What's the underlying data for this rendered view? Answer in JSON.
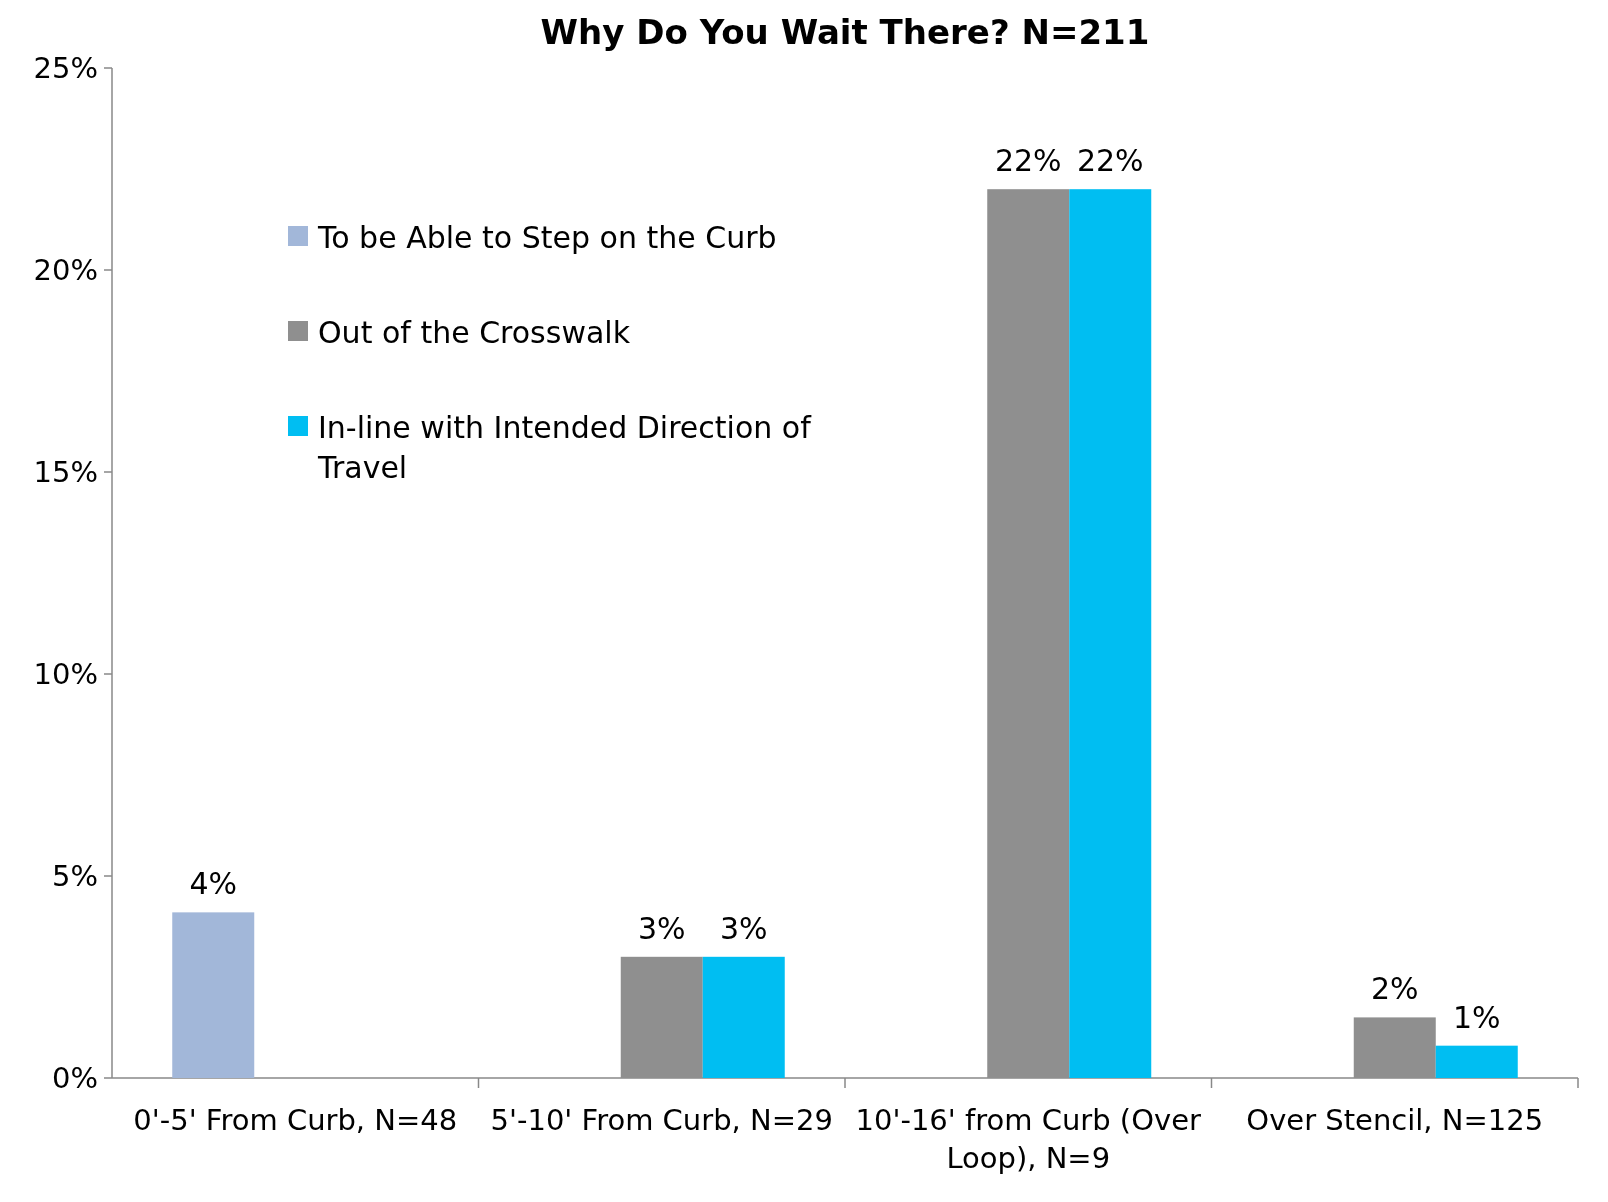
{
  "chart_data": {
    "type": "bar",
    "title": "Why Do You Wait There?   N=211",
    "categories": [
      "0'-5' From Curb, N=48",
      "5'-10' From Curb,  N=29",
      "10'-16' from Curb (Over Loop), N=9",
      "Over Stencil, N=125"
    ],
    "series": [
      {
        "name": "To be Able to Step on the Curb",
        "color": "#a2b7d9",
        "values": [
          4.1,
          null,
          null,
          null
        ],
        "value_labels": [
          "4%",
          null,
          null,
          null
        ]
      },
      {
        "name": "Out of the Crosswalk",
        "color": "#8f8f8f",
        "values": [
          null,
          3,
          22,
          1.5
        ],
        "value_labels": [
          null,
          "3%",
          "22%",
          "2%"
        ]
      },
      {
        "name": "In-line with Intended Direction of Travel",
        "color": "#00bef2",
        "values": [
          null,
          3,
          22,
          0.8
        ],
        "value_labels": [
          null,
          "3%",
          "22%",
          "1%"
        ]
      }
    ],
    "ylim": [
      0,
      25
    ],
    "yticks": [
      {
        "value": 0,
        "label": "0%"
      },
      {
        "value": 5,
        "label": "5%"
      },
      {
        "value": 10,
        "label": "10%"
      },
      {
        "value": 15,
        "label": "15%"
      },
      {
        "value": 20,
        "label": "20%"
      },
      {
        "value": 25,
        "label": "25%"
      }
    ],
    "grid": false,
    "legend": "top left"
  }
}
